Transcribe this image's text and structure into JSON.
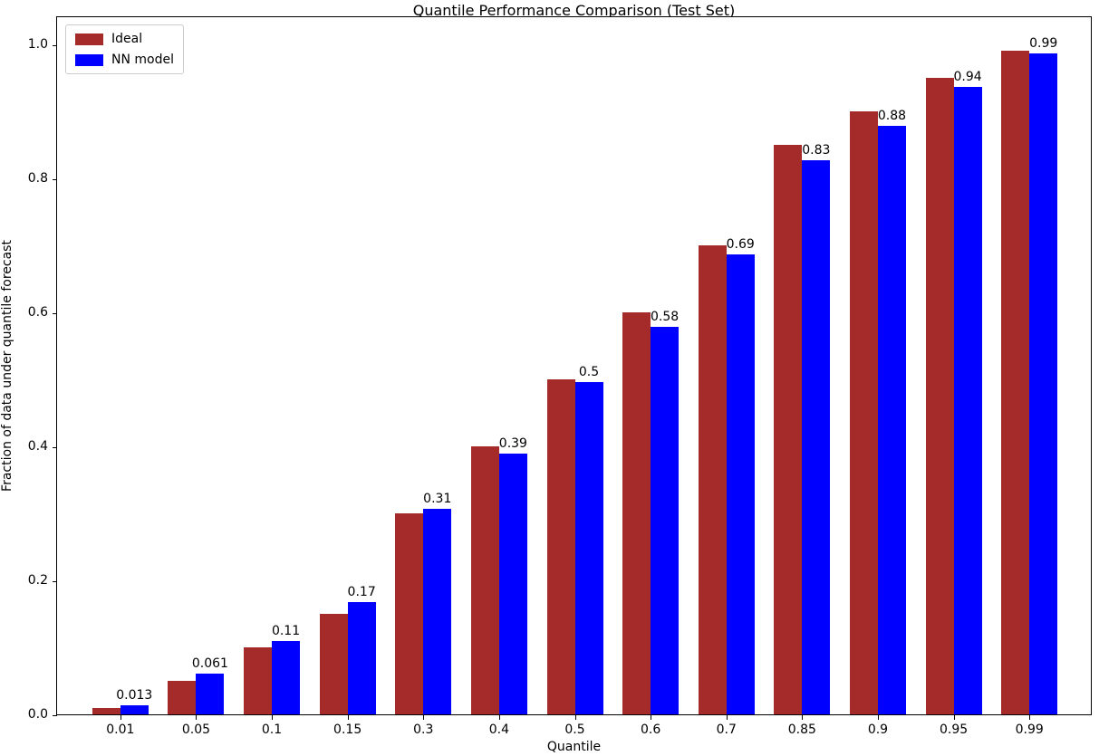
{
  "chart_data": {
    "type": "bar",
    "title": "Quantile Performance Comparison (Test Set)",
    "xlabel": "Quantile",
    "ylabel": "Fraction of data under quantile forecast",
    "categories": [
      "0.01",
      "0.05",
      "0.1",
      "0.15",
      "0.3",
      "0.4",
      "0.5",
      "0.6",
      "0.7",
      "0.85",
      "0.9",
      "0.95",
      "0.99"
    ],
    "series": [
      {
        "name": "Ideal",
        "color": "#A52A2A",
        "values": [
          0.01,
          0.05,
          0.1,
          0.15,
          0.3,
          0.4,
          0.5,
          0.6,
          0.7,
          0.85,
          0.9,
          0.95,
          0.99
        ]
      },
      {
        "name": "NN model",
        "color": "#0000FF",
        "values": [
          0.013,
          0.061,
          0.11,
          0.167,
          0.307,
          0.389,
          0.496,
          0.579,
          0.687,
          0.827,
          0.879,
          0.936,
          0.986
        ],
        "bar_labels": [
          "0.013",
          "0.061",
          "0.11",
          "0.17",
          "0.31",
          "0.39",
          "0.5",
          "0.58",
          "0.69",
          "0.83",
          "0.88",
          "0.94",
          "0.99"
        ]
      }
    ],
    "yticks": [
      "0.0",
      "0.2",
      "0.4",
      "0.6",
      "0.8",
      "1.0"
    ],
    "ylim": [
      0.0,
      1.043
    ],
    "xlim_note": "13 categorical groups",
    "legend_position": "upper-left",
    "grid": false,
    "background": "#ffffff"
  }
}
